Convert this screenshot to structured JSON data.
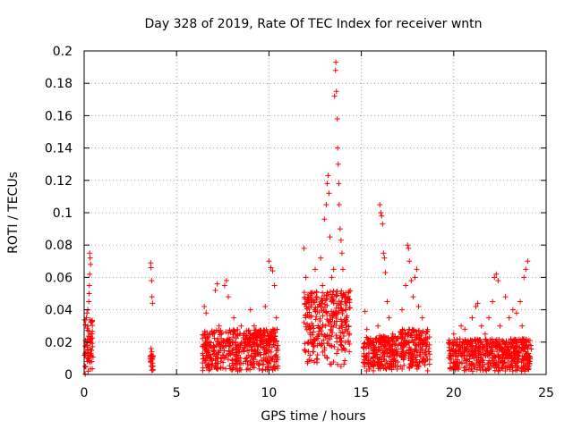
{
  "chart_data": {
    "type": "scatter",
    "title": "Day 328 of 2019, Rate Of TEC Index for receiver wntn",
    "xlabel": "GPS time / hours",
    "ylabel": "ROTI / TECUs",
    "xlim": [
      0,
      25
    ],
    "ylim": [
      0,
      0.2
    ],
    "xticks": [
      0,
      5,
      10,
      15,
      20,
      25
    ],
    "xtick_labels": [
      "0",
      "5",
      "10",
      "15",
      "20",
      "25"
    ],
    "yticks": [
      0,
      0.02,
      0.04,
      0.06,
      0.08,
      0.1,
      0.12,
      0.14,
      0.16,
      0.18,
      0.2
    ],
    "ytick_labels": [
      "0",
      "0.02",
      "0.04",
      "0.06",
      "0.08",
      "0.1",
      "0.12",
      "0.14",
      "0.16",
      "0.18",
      "0.2"
    ],
    "grid": true,
    "marker": "+",
    "marker_color": "#ff0000",
    "series": [
      {
        "name": "ROTI",
        "points": [
          [
            0.05,
            0.005
          ],
          [
            0.08,
            0.012
          ],
          [
            0.1,
            0.02
          ],
          [
            0.12,
            0.035
          ],
          [
            0.15,
            0.038
          ],
          [
            0.18,
            0.008
          ],
          [
            0.2,
            0.03
          ],
          [
            0.22,
            0.002
          ],
          [
            0.25,
            0.045
          ],
          [
            0.28,
            0.055
          ],
          [
            0.3,
            0.075
          ],
          [
            0.32,
            0.072
          ],
          [
            0.35,
            0.068
          ],
          [
            0.3,
            0.062
          ],
          [
            0.27,
            0.05
          ],
          [
            0.33,
            0.025
          ],
          [
            0.36,
            0.015
          ],
          [
            0.4,
            0.008
          ],
          [
            0.15,
            0.018
          ],
          [
            0.2,
            0.04
          ],
          [
            3.6,
            0.069
          ],
          [
            3.62,
            0.066
          ],
          [
            3.65,
            0.058
          ],
          [
            3.67,
            0.048
          ],
          [
            3.7,
            0.044
          ],
          [
            3.62,
            0.016
          ],
          [
            3.66,
            0.014
          ],
          [
            3.6,
            0.008
          ],
          [
            3.68,
            0.005
          ],
          [
            3.72,
            0.003
          ],
          [
            6.5,
            0.042
          ],
          [
            6.6,
            0.038
          ],
          [
            6.8,
            0.025
          ],
          [
            7.0,
            0.018
          ],
          [
            7.1,
            0.052
          ],
          [
            7.2,
            0.056
          ],
          [
            7.3,
            0.03
          ],
          [
            7.5,
            0.012
          ],
          [
            7.6,
            0.055
          ],
          [
            7.7,
            0.058
          ],
          [
            7.8,
            0.048
          ],
          [
            7.9,
            0.02
          ],
          [
            8.1,
            0.035
          ],
          [
            8.3,
            0.008
          ],
          [
            8.5,
            0.03
          ],
          [
            8.7,
            0.018
          ],
          [
            8.9,
            0.012
          ],
          [
            9.0,
            0.04
          ],
          [
            9.2,
            0.03
          ],
          [
            9.4,
            0.025
          ],
          [
            9.6,
            0.02
          ],
          [
            9.8,
            0.042
          ],
          [
            10.0,
            0.07
          ],
          [
            10.1,
            0.066
          ],
          [
            10.2,
            0.064
          ],
          [
            10.3,
            0.055
          ],
          [
            10.4,
            0.035
          ],
          [
            10.2,
            0.01
          ],
          [
            9.9,
            0.005
          ],
          [
            6.7,
            0.005
          ],
          [
            7.4,
            0.004
          ],
          [
            8.2,
            0.006
          ],
          [
            8.8,
            0.003
          ],
          [
            11.9,
            0.078
          ],
          [
            12.0,
            0.06
          ],
          [
            12.1,
            0.045
          ],
          [
            12.3,
            0.05
          ],
          [
            12.5,
            0.065
          ],
          [
            12.6,
            0.048
          ],
          [
            12.8,
            0.072
          ],
          [
            12.9,
            0.055
          ],
          [
            13.0,
            0.096
          ],
          [
            13.1,
            0.105
          ],
          [
            13.15,
            0.118
          ],
          [
            13.2,
            0.123
          ],
          [
            13.25,
            0.112
          ],
          [
            13.3,
            0.085
          ],
          [
            13.4,
            0.06
          ],
          [
            13.5,
            0.065
          ],
          [
            13.55,
            0.172
          ],
          [
            13.6,
            0.188
          ],
          [
            13.62,
            0.193
          ],
          [
            13.65,
            0.175
          ],
          [
            13.7,
            0.158
          ],
          [
            13.72,
            0.14
          ],
          [
            13.75,
            0.13
          ],
          [
            13.78,
            0.118
          ],
          [
            13.8,
            0.105
          ],
          [
            13.85,
            0.09
          ],
          [
            13.9,
            0.083
          ],
          [
            13.95,
            0.075
          ],
          [
            14.0,
            0.065
          ],
          [
            14.1,
            0.045
          ],
          [
            14.2,
            0.035
          ],
          [
            14.3,
            0.02
          ],
          [
            12.2,
            0.03
          ],
          [
            12.4,
            0.02
          ],
          [
            12.7,
            0.025
          ],
          [
            13.0,
            0.015
          ],
          [
            13.3,
            0.018
          ],
          [
            12.1,
            0.008
          ],
          [
            13.9,
            0.005
          ],
          [
            15.2,
            0.039
          ],
          [
            15.3,
            0.028
          ],
          [
            15.5,
            0.02
          ],
          [
            15.7,
            0.015
          ],
          [
            15.9,
            0.03
          ],
          [
            16.0,
            0.105
          ],
          [
            16.05,
            0.1
          ],
          [
            16.1,
            0.098
          ],
          [
            16.15,
            0.093
          ],
          [
            16.2,
            0.075
          ],
          [
            16.25,
            0.072
          ],
          [
            16.3,
            0.063
          ],
          [
            16.4,
            0.045
          ],
          [
            16.5,
            0.035
          ],
          [
            16.7,
            0.025
          ],
          [
            16.8,
            0.015
          ],
          [
            15.4,
            0.005
          ],
          [
            16.3,
            0.004
          ],
          [
            16.6,
            0.008
          ],
          [
            17.2,
            0.04
          ],
          [
            17.4,
            0.055
          ],
          [
            17.5,
            0.08
          ],
          [
            17.55,
            0.078
          ],
          [
            17.6,
            0.07
          ],
          [
            17.7,
            0.058
          ],
          [
            17.8,
            0.048
          ],
          [
            17.9,
            0.06
          ],
          [
            18.0,
            0.065
          ],
          [
            18.1,
            0.042
          ],
          [
            18.3,
            0.035
          ],
          [
            18.5,
            0.025
          ],
          [
            17.3,
            0.01
          ],
          [
            18.0,
            0.005
          ],
          [
            18.4,
            0.008
          ],
          [
            19.8,
            0.02
          ],
          [
            20.0,
            0.025
          ],
          [
            20.2,
            0.018
          ],
          [
            20.4,
            0.03
          ],
          [
            20.6,
            0.028
          ],
          [
            20.8,
            0.02
          ],
          [
            21.0,
            0.035
          ],
          [
            21.2,
            0.042
          ],
          [
            21.3,
            0.044
          ],
          [
            21.5,
            0.03
          ],
          [
            21.7,
            0.025
          ],
          [
            21.9,
            0.035
          ],
          [
            22.1,
            0.045
          ],
          [
            22.2,
            0.06
          ],
          [
            22.3,
            0.062
          ],
          [
            22.4,
            0.058
          ],
          [
            22.5,
            0.03
          ],
          [
            22.8,
            0.048
          ],
          [
            23.0,
            0.035
          ],
          [
            23.2,
            0.04
          ],
          [
            23.4,
            0.038
          ],
          [
            23.6,
            0.045
          ],
          [
            23.8,
            0.06
          ],
          [
            23.9,
            0.065
          ],
          [
            24.0,
            0.07
          ],
          [
            23.7,
            0.03
          ],
          [
            23.5,
            0.02
          ],
          [
            20.1,
            0.005
          ],
          [
            21.4,
            0.006
          ],
          [
            22.6,
            0.004
          ],
          [
            23.3,
            0.008
          ],
          [
            24.0,
            0.006
          ]
        ]
      }
    ],
    "bands": [
      {
        "x": [
          0.02,
          0.48
        ],
        "y": [
          0.0,
          0.036
        ]
      },
      {
        "x": [
          3.58,
          3.74
        ],
        "y": [
          0.002,
          0.012
        ]
      },
      {
        "x": [
          6.4,
          10.5
        ],
        "y": [
          0.002,
          0.028
        ]
      },
      {
        "x": [
          11.9,
          14.4
        ],
        "y": [
          0.006,
          0.052
        ]
      },
      {
        "x": [
          15.1,
          17.0
        ],
        "y": [
          0.002,
          0.024
        ]
      },
      {
        "x": [
          17.1,
          18.7
        ],
        "y": [
          0.002,
          0.028
        ]
      },
      {
        "x": [
          19.7,
          24.2
        ],
        "y": [
          0.002,
          0.022
        ]
      }
    ]
  }
}
